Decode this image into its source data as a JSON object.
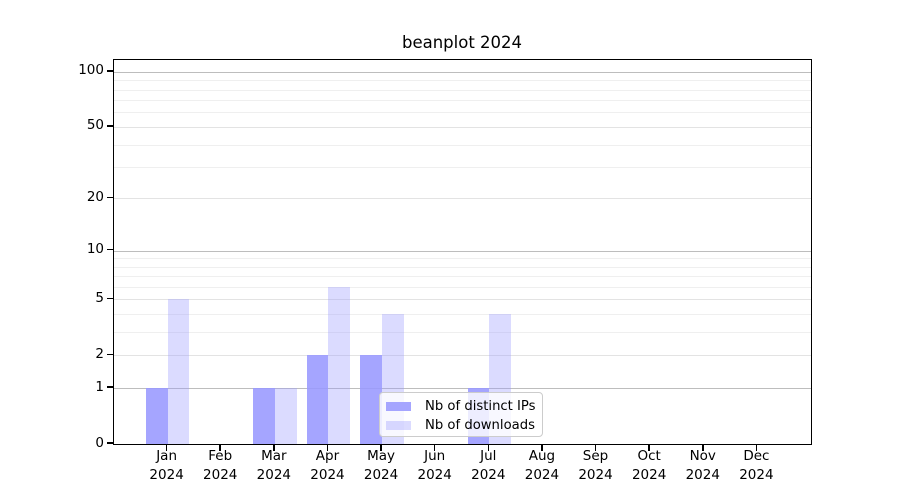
{
  "title": "beanplot 2024",
  "chart_data": {
    "type": "bar",
    "title": "beanplot 2024",
    "categories": [
      "Jan",
      "Feb",
      "Mar",
      "Apr",
      "May",
      "Jun",
      "Jul",
      "Aug",
      "Sep",
      "Oct",
      "Nov",
      "Dec"
    ],
    "year_label": "2024",
    "series": [
      {
        "name": "Nb of distinct IPs",
        "color": "#9999ff",
        "alpha": 0.88,
        "values": [
          1,
          0,
          1,
          2,
          2,
          0,
          1,
          0,
          0,
          0,
          0,
          0
        ]
      },
      {
        "name": "Nb of downloads",
        "color": "#9999ff",
        "alpha": 0.35,
        "values": [
          5,
          0,
          1,
          6,
          4,
          0,
          4,
          0,
          0,
          0,
          0,
          0
        ]
      }
    ],
    "y_axis": {
      "scale": "log1p",
      "tick_values": [
        0,
        1,
        2,
        5,
        10,
        20,
        50,
        100
      ],
      "major_grid_values": [
        1,
        10,
        100
      ],
      "mid_grid_values": [
        2,
        5,
        20,
        50
      ],
      "minor_grid_values": [
        3,
        4,
        6,
        7,
        8,
        9,
        30,
        40,
        60,
        70,
        80,
        90
      ],
      "major_grid_color": "#bdbdbd",
      "mid_grid_color": "#e3e3e3",
      "minor_grid_color": "#efefef"
    },
    "xlabel": "",
    "ylabel": "",
    "grid": true,
    "legend_position": "inside lower-center"
  }
}
